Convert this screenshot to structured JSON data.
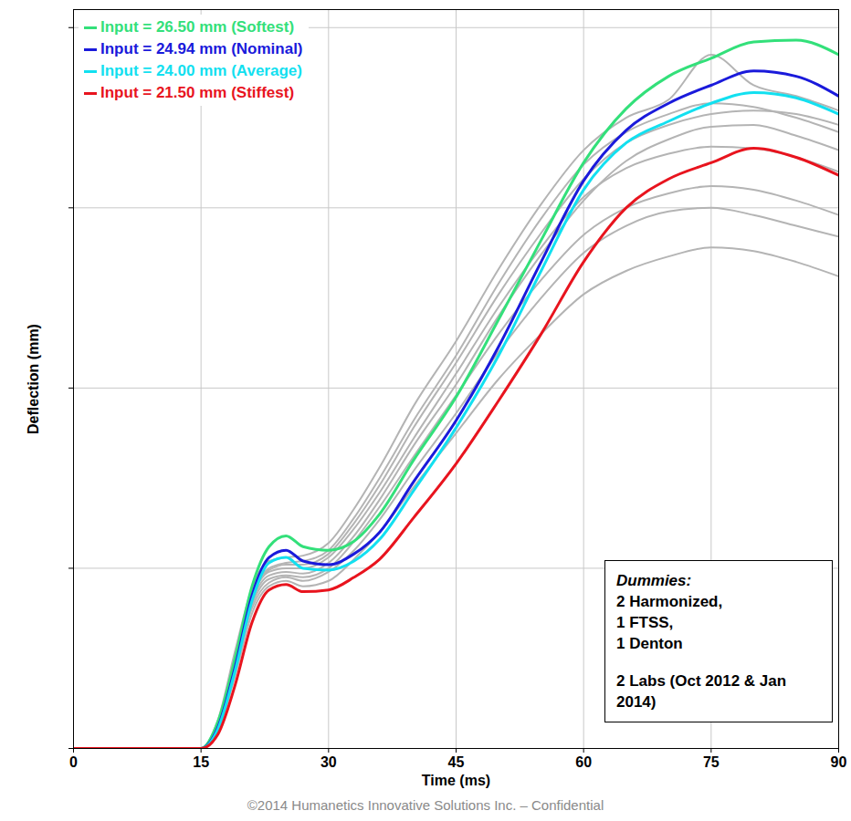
{
  "chart_data": {
    "type": "line",
    "x_label": "Time (ms)",
    "y_label": "Deflection (mm)",
    "x": [
      0,
      5,
      10,
      15,
      17,
      19,
      21,
      23,
      25,
      27,
      30,
      33,
      36,
      40,
      45,
      50,
      55,
      60,
      65,
      70,
      75,
      80,
      85,
      90
    ],
    "xlim": [
      0,
      90
    ],
    "xticks": [
      0,
      15,
      30,
      45,
      60,
      75,
      90
    ],
    "ylim": [
      0,
      41
    ],
    "yticks": [
      0,
      10,
      20,
      30,
      40
    ],
    "grid": true,
    "tick_labels": "x",
    "legend": "upper left",
    "series": [
      {
        "color": "#b4b4b4",
        "values": [
          0,
          0,
          0,
          0,
          1.0,
          4.0,
          7.5,
          9.0,
          9.3,
          9.0,
          9.3,
          10.5,
          12.0,
          14.5,
          17.5,
          20.5,
          23.0,
          25.2,
          26.5,
          27.3,
          27.8,
          27.6,
          27.0,
          26.2
        ]
      },
      {
        "color": "#b4b4b4",
        "values": [
          0,
          0,
          0,
          0,
          1.2,
          4.6,
          8.0,
          9.4,
          9.6,
          9.5,
          10.0,
          11.5,
          13.4,
          16.2,
          19.6,
          23.0,
          26.0,
          28.5,
          30.0,
          30.8,
          31.2,
          31.0,
          30.4,
          29.6
        ]
      },
      {
        "color": "#b4b4b4",
        "values": [
          0,
          0,
          0,
          0,
          1.4,
          5.0,
          8.4,
          9.8,
          10.0,
          10.0,
          10.6,
          12.2,
          14.2,
          17.2,
          20.8,
          24.5,
          27.8,
          30.6,
          32.2,
          33.0,
          33.4,
          33.3,
          32.8,
          32.0
        ]
      },
      {
        "color": "#b4b4b4",
        "values": [
          0,
          0,
          0,
          0,
          1.3,
          4.8,
          8.2,
          9.6,
          9.8,
          9.7,
          10.3,
          11.8,
          13.8,
          16.8,
          20.2,
          24.0,
          27.4,
          30.4,
          32.6,
          33.8,
          34.5,
          34.6,
          34.0,
          33.2
        ]
      },
      {
        "color": "#b4b4b4",
        "values": [
          0,
          0,
          0,
          0,
          1.5,
          5.2,
          8.6,
          10.0,
          10.3,
          10.4,
          11.0,
          12.8,
          15.0,
          18.2,
          21.8,
          25.8,
          29.4,
          32.4,
          34.2,
          35.2,
          35.8,
          35.6,
          35.0,
          34.2
        ]
      },
      {
        "color": "#b4b4b4",
        "values": [
          0,
          0,
          0,
          0,
          1.6,
          5.4,
          8.9,
          10.4,
          10.6,
          10.7,
          11.4,
          13.3,
          15.6,
          19.0,
          22.6,
          26.6,
          30.2,
          33.2,
          35.0,
          36.0,
          38.5,
          36.8,
          36.2,
          35.4
        ]
      },
      {
        "color": "#b4b4b4",
        "values": [
          0,
          0,
          0,
          0,
          1.2,
          4.4,
          7.8,
          9.2,
          9.5,
          9.3,
          9.8,
          11.0,
          12.7,
          15.4,
          18.6,
          22.0,
          25.0,
          27.5,
          29.0,
          29.8,
          30.0,
          29.6,
          29.0,
          28.4
        ]
      },
      {
        "color": "#b4b4b4",
        "values": [
          0,
          0,
          0,
          0,
          1.4,
          5.0,
          8.5,
          9.9,
          10.2,
          10.2,
          10.8,
          12.5,
          14.6,
          17.8,
          21.4,
          25.2,
          28.6,
          31.6,
          33.6,
          34.6,
          35.2,
          35.4,
          35.2,
          34.6
        ]
      },
      {
        "name": "Input = 26.50 mm (Softest)",
        "color": "#33e07a",
        "values": [
          0,
          0,
          0,
          0,
          1.5,
          5.0,
          9.0,
          11.2,
          11.8,
          11.2,
          11.0,
          11.5,
          13.0,
          16.0,
          19.5,
          23.8,
          28.2,
          32.5,
          35.5,
          37.3,
          38.3,
          39.2,
          39.3,
          38.5
        ]
      },
      {
        "name": "Input = 24.94 mm (Nominal)",
        "color": "#1a1adb",
        "values": [
          0,
          0,
          0,
          0,
          1.2,
          4.5,
          8.5,
          10.6,
          11.0,
          10.4,
          10.2,
          10.8,
          12.0,
          14.8,
          18.2,
          22.3,
          27.0,
          31.5,
          34.3,
          35.8,
          36.8,
          37.6,
          37.3,
          36.2
        ]
      },
      {
        "name": "Input = 24.00 mm (Average)",
        "color": "#12e0f0",
        "values": [
          0,
          0,
          0,
          0,
          1.1,
          4.3,
          8.2,
          10.3,
          10.6,
          10.0,
          9.9,
          10.4,
          11.6,
          14.3,
          17.8,
          21.8,
          26.5,
          31.0,
          33.6,
          34.8,
          35.8,
          36.4,
          36.1,
          35.2
        ]
      },
      {
        "name": "Input = 21.50 mm (Stiffest)",
        "color": "#e8141e",
        "values": [
          0,
          0,
          0,
          0,
          0.8,
          3.5,
          7.0,
          8.8,
          9.1,
          8.7,
          8.8,
          9.5,
          10.5,
          12.8,
          15.8,
          19.3,
          23.0,
          27.0,
          30.0,
          31.6,
          32.5,
          33.3,
          32.8,
          31.8
        ]
      }
    ],
    "annotation": [
      "Dummies:",
      "2 Harmonized,",
      "1 FTSS,",
      "1 Denton",
      "2 Labs (Oct 2012 & Jan 2014)"
    ],
    "caption": "©2014 Humanetics Innovative Solutions Inc. – Confidential"
  }
}
